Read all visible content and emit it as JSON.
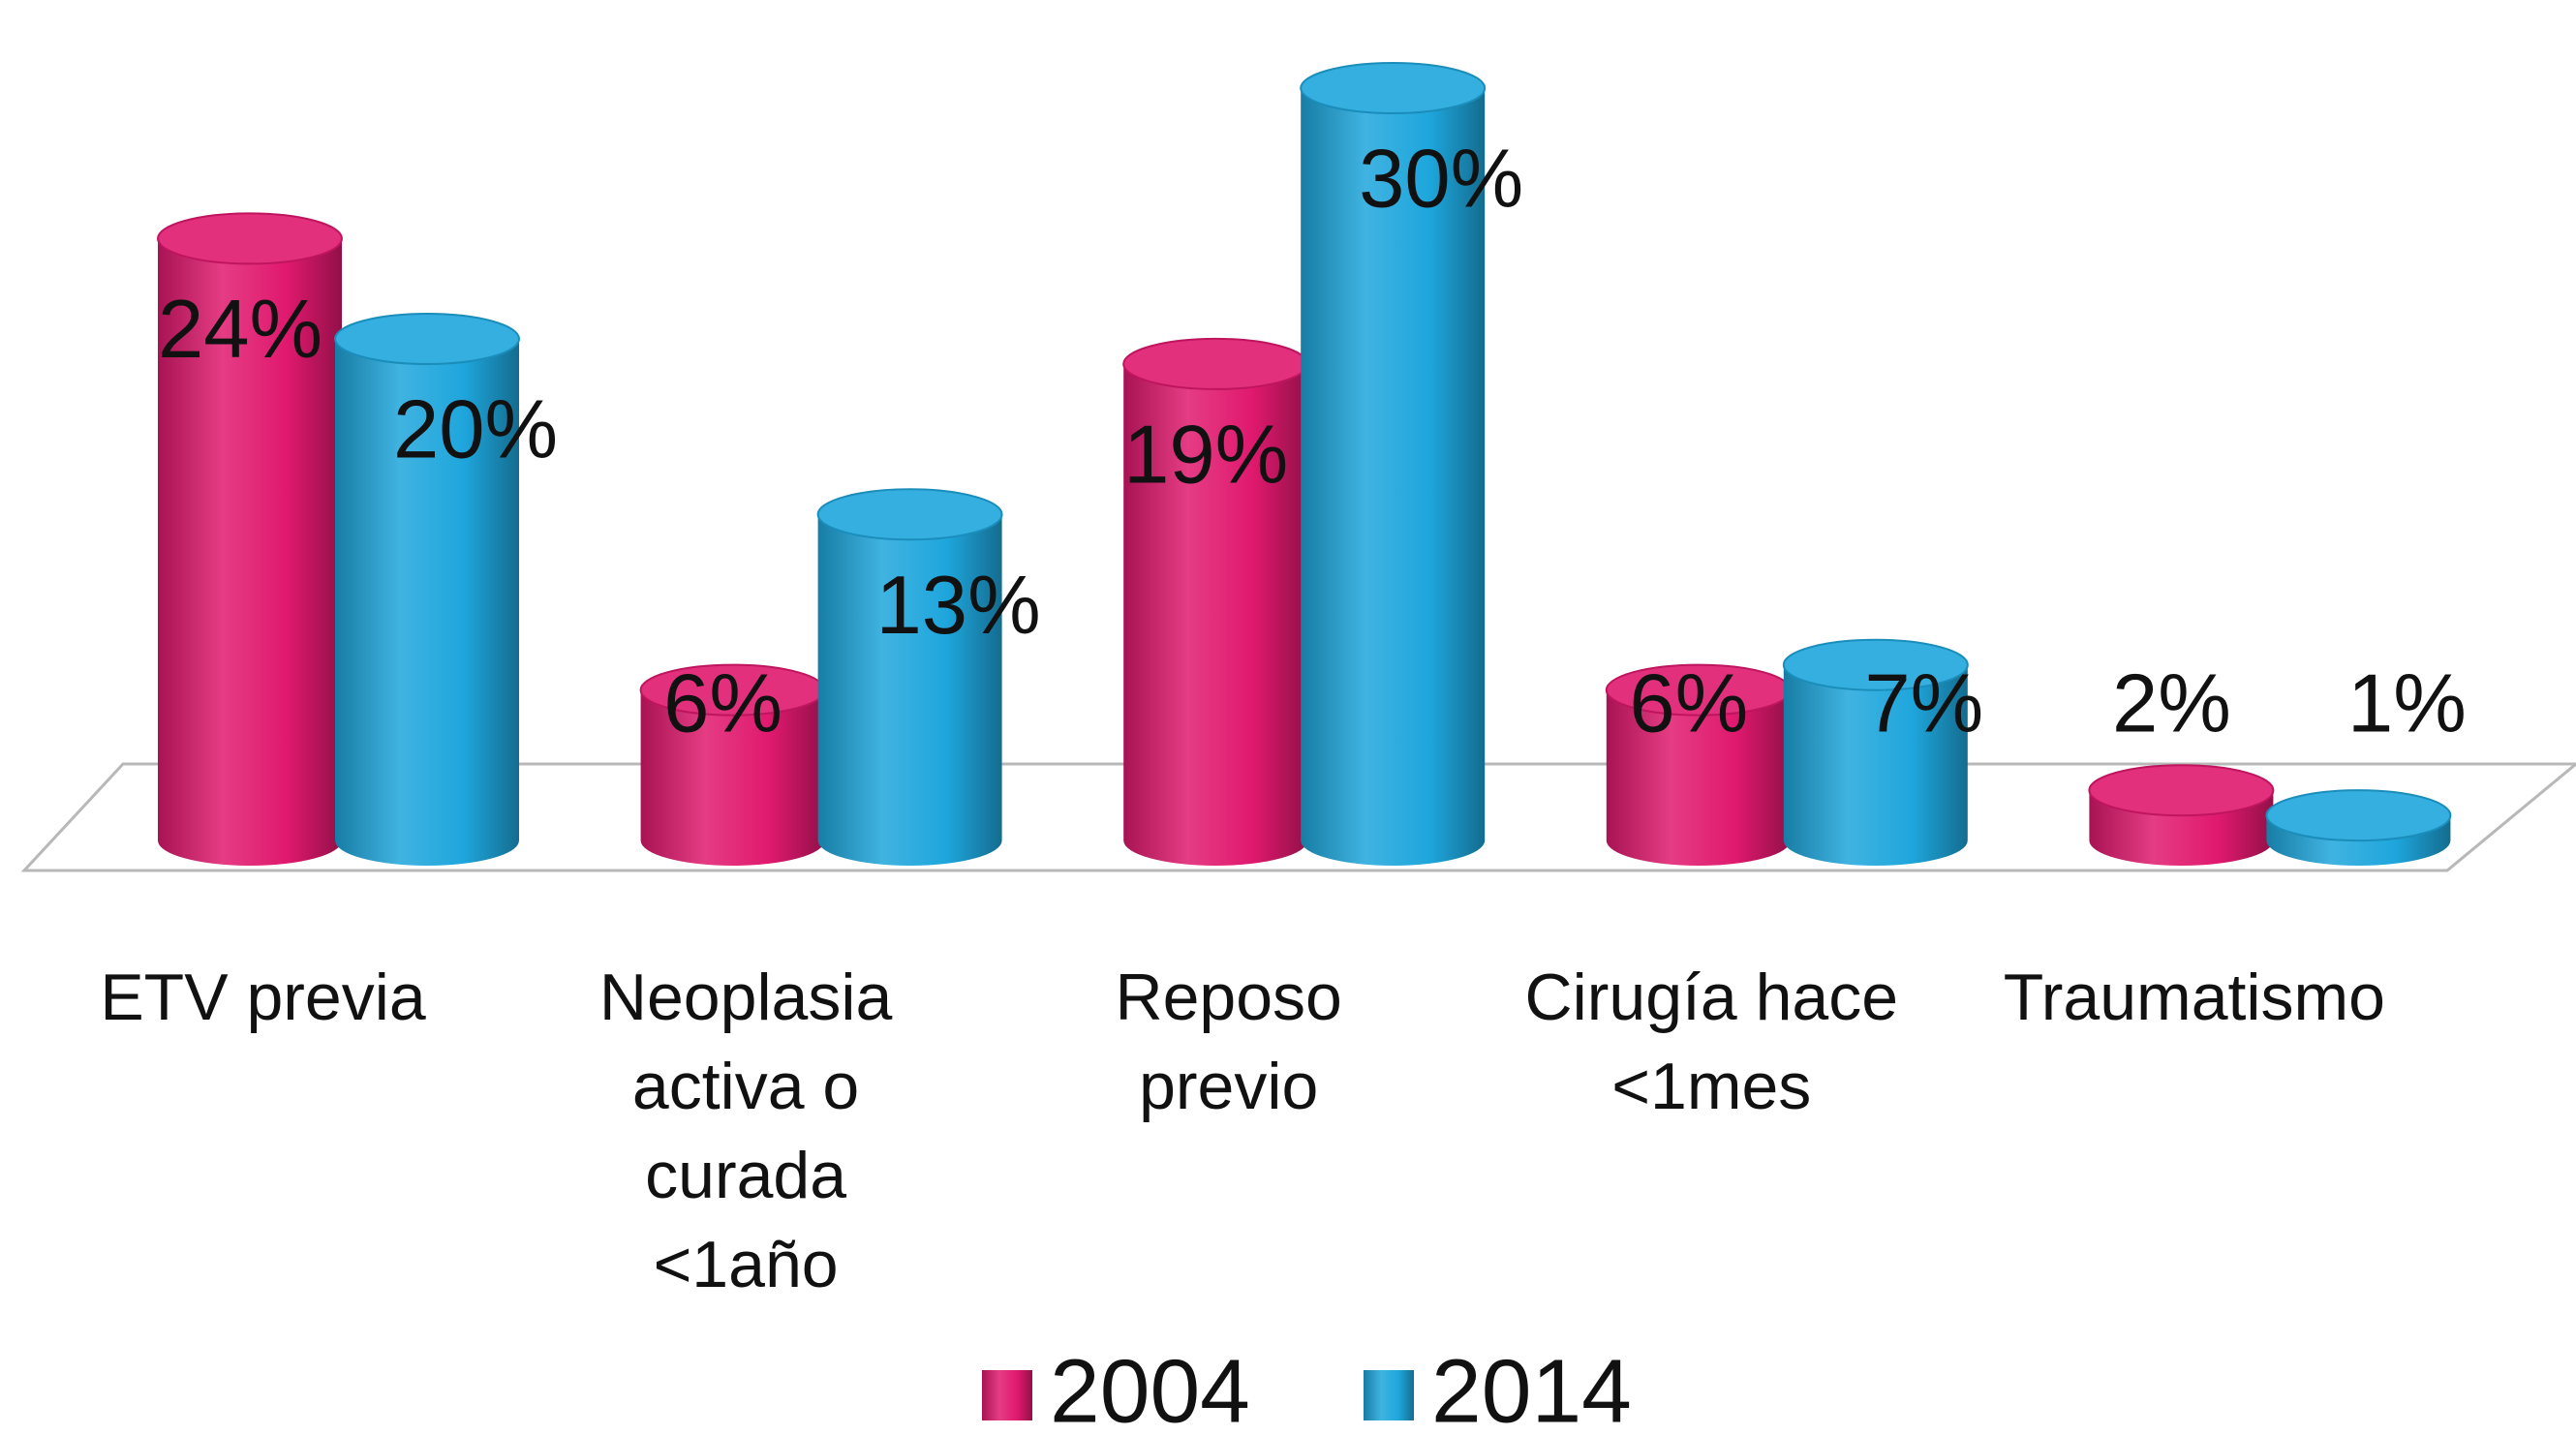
{
  "chart_data": {
    "type": "bar3d",
    "categories": [
      "ETV previa",
      "Neoplasia activa o curada <1año",
      "Reposo previo",
      "Cirugía hace <1mes",
      "Traumatismo"
    ],
    "series": [
      {
        "name": "2004",
        "color": "#e0196e",
        "values": [
          24,
          6,
          19,
          6,
          2
        ],
        "value_labels": [
          "24%",
          "6%",
          "19%",
          "6%",
          "2%"
        ]
      },
      {
        "name": "2014",
        "color": "#1ea6dc",
        "values": [
          20,
          13,
          30,
          7,
          1
        ],
        "value_labels": [
          "20%",
          "13%",
          "30%",
          "7%",
          "1%"
        ]
      }
    ],
    "legend": "bottom"
  }
}
